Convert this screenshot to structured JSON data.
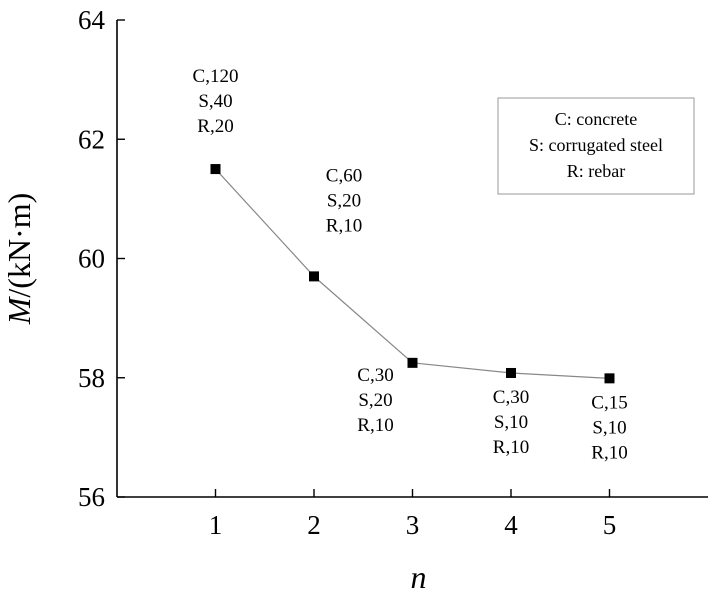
{
  "chart_data": {
    "type": "line",
    "title": "",
    "xlabel": "n",
    "ylabel": "M/(kN·m)",
    "ylabel_italic_part": "M",
    "ylabel_rest": "/(kN·m)",
    "xlim": [
      0,
      6
    ],
    "ylim": [
      56,
      64
    ],
    "xticks": [
      1,
      2,
      3,
      4,
      5
    ],
    "yticks": [
      56,
      58,
      60,
      62,
      64
    ],
    "grid": false,
    "x": [
      1,
      2,
      3,
      4,
      5
    ],
    "y": [
      61.5,
      59.7,
      58.25,
      58.08,
      57.99
    ],
    "line_color": "#888888",
    "marker": "square",
    "marker_color": "#000000",
    "annotations": [
      {
        "x": 1,
        "lines": [
          "C,120",
          "S,40",
          "R,20"
        ],
        "position": "above"
      },
      {
        "x": 2,
        "lines": [
          "C,60",
          "S,20",
          "R,10"
        ],
        "position": "above-right"
      },
      {
        "x": 3,
        "lines": [
          "C,30",
          "S,20",
          "R,10"
        ],
        "position": "below-left"
      },
      {
        "x": 4,
        "lines": [
          "C,30",
          "S,10",
          "R,10"
        ],
        "position": "below"
      },
      {
        "x": 5,
        "lines": [
          "C,15",
          "S,10",
          "R,10"
        ],
        "position": "below"
      }
    ],
    "legend": {
      "position": "top-right",
      "entries": [
        "C: concrete",
        "S: corrugated steel",
        "R: rebar"
      ]
    }
  }
}
